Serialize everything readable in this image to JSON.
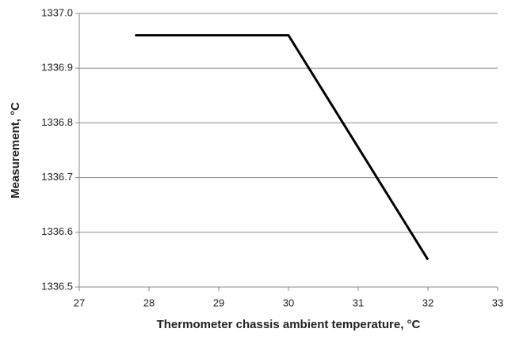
{
  "chart_data": {
    "type": "line",
    "x_label": "Thermometer chassis ambient temperature, °C",
    "y_label": "Measurement, °C",
    "x": [
      27.8,
      30,
      32
    ],
    "values": [
      1336.96,
      1336.96,
      1336.55
    ],
    "color": "#000000",
    "xlim": [
      27,
      33
    ],
    "xticks": [
      27,
      28,
      29,
      30,
      31,
      32,
      33
    ],
    "ylim": [
      1336.5,
      1337
    ],
    "yticks": [
      1336.5,
      1336.6,
      1336.7,
      1336.8,
      1336.9,
      {
        "value": 1337,
        "label": "1337.0"
      }
    ],
    "grid": true
  }
}
